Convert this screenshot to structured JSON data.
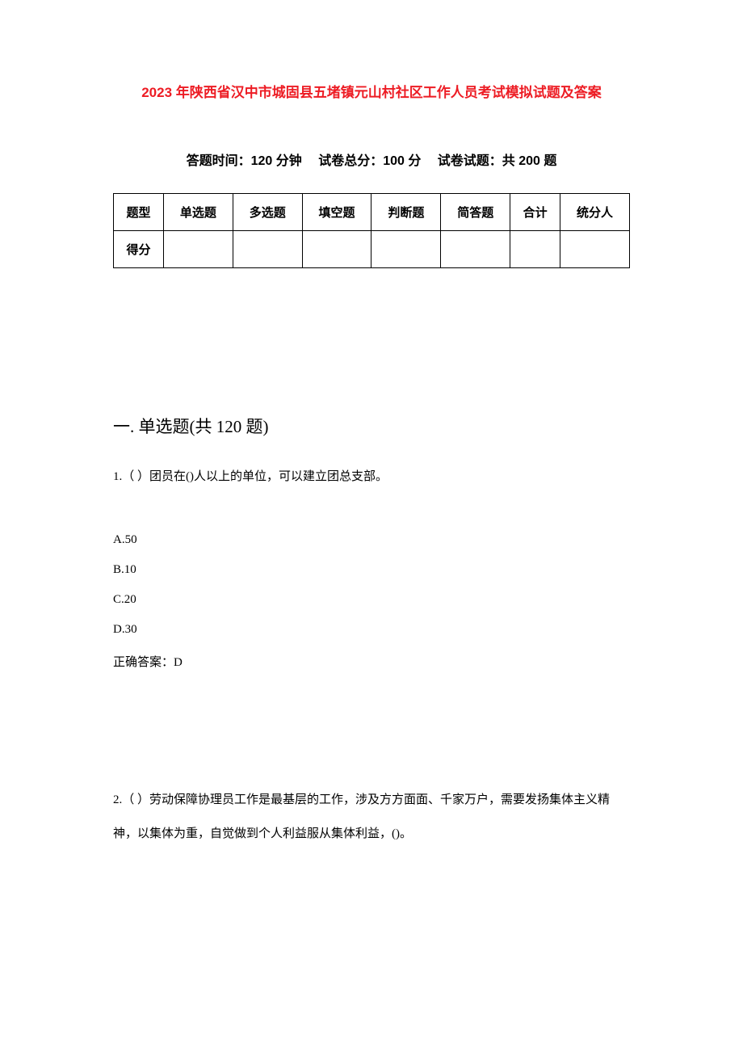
{
  "title": "2023 年陕西省汉中市城固县五堵镇元山村社区工作人员考试模拟试题及答案",
  "exam_info": "答题时间：120 分钟　 试卷总分：100 分　 试卷试题：共 200 题",
  "table": {
    "row1": [
      "题型",
      "单选题",
      "多选题",
      "填空题",
      "判断题",
      "简答题",
      "合计",
      "统分人"
    ],
    "row2_label": "得分"
  },
  "section1_header": "一. 单选题(共 120 题)",
  "q1": {
    "text": "1.（ ）团员在()人以上的单位，可以建立团总支部。",
    "options": {
      "a": "A.50",
      "b": "B.10",
      "c": "C.20",
      "d": "D.30"
    },
    "answer": "正确答案：D"
  },
  "q2": {
    "text": "2.（ ）劳动保障协理员工作是最基层的工作，涉及方方面面、千家万户，需要发扬集体主义精神，以集体为重，自觉做到个人利益服从集体利益，()。"
  },
  "colors": {
    "title_color": "#ed1c24",
    "text_color": "#000000",
    "background": "#ffffff",
    "table_border": "#000000"
  },
  "typography": {
    "title_fontsize": 17,
    "info_fontsize": 16,
    "section_fontsize": 21,
    "body_fontsize": 15,
    "table_fontsize": 15
  }
}
